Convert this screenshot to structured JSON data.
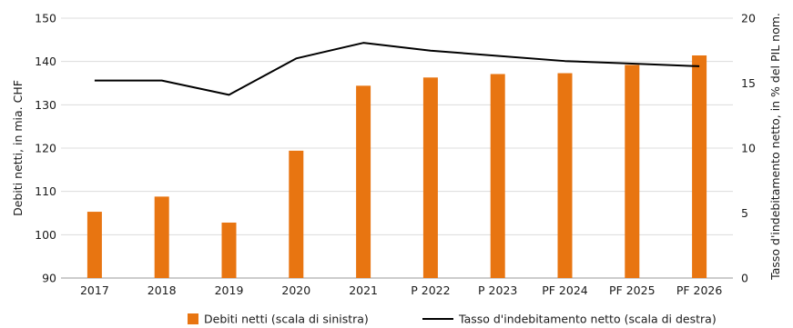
{
  "chart_data": {
    "type": "bar",
    "categories": [
      "2017",
      "2018",
      "2019",
      "2020",
      "2021",
      "P 2022",
      "P 2023",
      "PF 2024",
      "PF 2025",
      "PF 2026"
    ],
    "series": [
      {
        "name": "Debiti netti (scala di sinistra)",
        "type": "bar",
        "axis": "left",
        "color": "#E87511",
        "values": [
          105.3,
          108.8,
          102.8,
          119.4,
          134.4,
          136.3,
          137.1,
          137.3,
          139.2,
          141.4
        ]
      },
      {
        "name": "Tasso d'indebitamento netto (scala di destra)",
        "type": "line",
        "axis": "right",
        "color": "#000000",
        "values": [
          15.2,
          15.2,
          14.1,
          16.9,
          18.1,
          17.5,
          17.1,
          16.7,
          16.5,
          16.3
        ]
      }
    ],
    "ylabel": "Debiti netti, in mia. CHF",
    "y2label": "Tasso d'indebitamento netto, in % del PIL nom.",
    "ylim": [
      90,
      150
    ],
    "yticks": [
      "90",
      "100",
      "110",
      "120",
      "130",
      "140",
      "150"
    ],
    "y2lim": [
      0,
      20
    ],
    "y2ticks": [
      "0",
      "5",
      "10",
      "15",
      "20"
    ],
    "grid": true,
    "legend_position": "bottom"
  }
}
